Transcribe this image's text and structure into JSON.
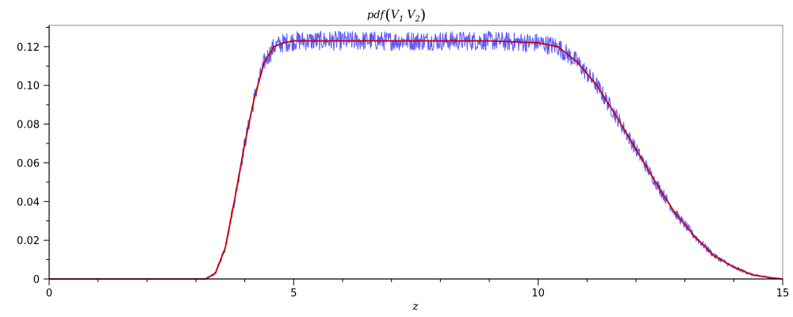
{
  "chart_data": {
    "type": "line",
    "title": {
      "func": "pdf",
      "open": "(",
      "v1": "V",
      "sub1": "1",
      "v2": "V",
      "sub2": "2",
      "close": ")"
    },
    "xlabel": "z",
    "ylabel": "",
    "xlim": [
      0,
      15
    ],
    "ylim": [
      0,
      0.131
    ],
    "x_ticks": [
      0,
      5,
      10,
      15
    ],
    "x_tick_labels": [
      "0",
      "5",
      "10",
      "15"
    ],
    "y_ticks": [
      0,
      0.02,
      0.04,
      0.06,
      0.08,
      0.1,
      0.12
    ],
    "y_tick_labels": [
      "0",
      "0.02",
      "0.04",
      "0.06",
      "0.08",
      "0.10",
      "0.12"
    ],
    "grid": false,
    "legend": "none",
    "series": [
      {
        "kind": "histogram-noise",
        "color": "#5b5bff",
        "x": [
          0,
          3.2,
          3.4,
          3.6,
          3.8,
          4.0,
          4.2,
          4.4,
          4.6,
          4.8,
          5.0,
          5.5,
          6,
          7,
          8,
          9,
          10,
          10.4,
          10.8,
          11.2,
          11.6,
          12.0,
          12.4,
          12.8,
          13.2,
          13.6,
          14.0,
          14.4,
          14.8,
          15
        ],
        "values": [
          0,
          0,
          0.003,
          0.016,
          0.042,
          0.07,
          0.094,
          0.112,
          0.12,
          0.122,
          0.123,
          0.123,
          0.123,
          0.123,
          0.123,
          0.123,
          0.122,
          0.12,
          0.112,
          0.1,
          0.084,
          0.067,
          0.05,
          0.034,
          0.022,
          0.012,
          0.006,
          0.002,
          0.0005,
          0
        ],
        "noise_amplitude": 0.005
      },
      {
        "kind": "density",
        "color": "#cc0000",
        "x": [
          0,
          3.2,
          3.4,
          3.6,
          3.8,
          4.0,
          4.2,
          4.4,
          4.6,
          4.8,
          5.0,
          5.5,
          6,
          7,
          8,
          9,
          10,
          10.4,
          10.8,
          11.2,
          11.6,
          12.0,
          12.4,
          12.8,
          13.2,
          13.6,
          14.0,
          14.4,
          14.8,
          15
        ],
        "values": [
          0,
          0,
          0.003,
          0.016,
          0.042,
          0.07,
          0.094,
          0.112,
          0.12,
          0.122,
          0.123,
          0.123,
          0.123,
          0.123,
          0.123,
          0.123,
          0.122,
          0.12,
          0.112,
          0.1,
          0.084,
          0.067,
          0.05,
          0.034,
          0.022,
          0.012,
          0.006,
          0.002,
          0.0005,
          0
        ]
      }
    ]
  }
}
